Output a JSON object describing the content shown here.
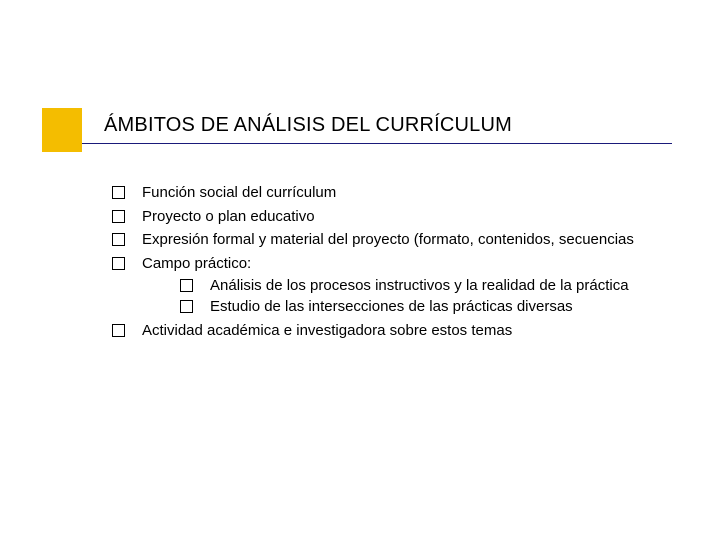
{
  "accent": {
    "color": "#f4bd00"
  },
  "title": "ÁMBITOS DE ANÁLISIS DEL CURRÍCULUM",
  "underline_color": "#1a1a7a",
  "text_color": "#000000",
  "body_fontsize": 15,
  "title_fontsize": 20,
  "bullets": {
    "b1": "Función social del currículum",
    "b2": "Proyecto o plan educativo",
    "b3": "Expresión formal y material del proyecto (formato, contenidos, secuencias",
    "b4": "Campo práctico:",
    "b4_s1": "Análisis de los procesos instructivos y la realidad de la práctica",
    "b4_s2": "Estudio de las intersecciones de las prácticas diversas",
    "b5": "Actividad académica e investigadora sobre estos temas"
  }
}
